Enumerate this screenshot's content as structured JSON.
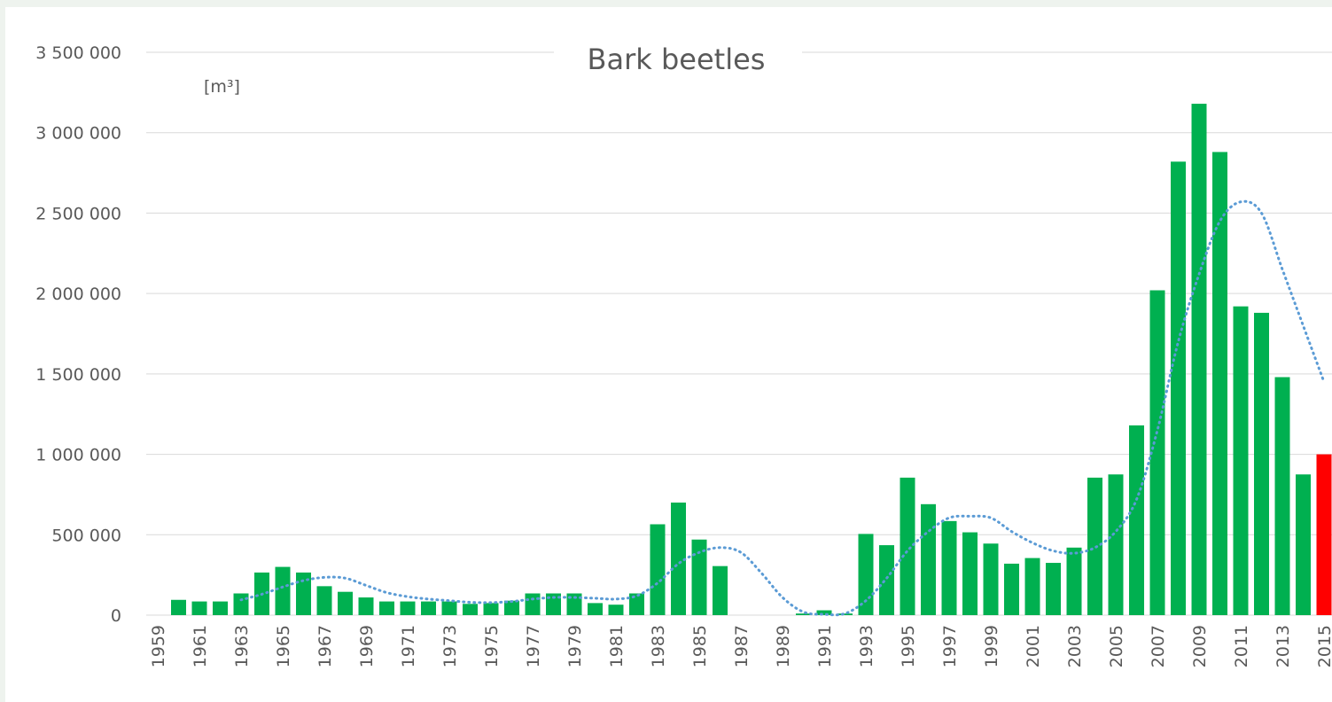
{
  "chart_data": {
    "type": "bar",
    "title": "Bark beetles",
    "unit": "[m³]",
    "categories": [
      "1959",
      null,
      "1961",
      null,
      "1963",
      null,
      "1965",
      null,
      "1967",
      null,
      "1969",
      null,
      "1971",
      null,
      "1973",
      null,
      "1975",
      null,
      "1977",
      null,
      "1979",
      null,
      "1981",
      null,
      "1983",
      null,
      "1985",
      null,
      "1987",
      null,
      "1989",
      null,
      "1991",
      null,
      "1993",
      null,
      "1995",
      null,
      "1997",
      null,
      "1999",
      null,
      "2001",
      null,
      "2003",
      null,
      "2005",
      null,
      "2007",
      null,
      "2009",
      null,
      "2011",
      null,
      "2013",
      null,
      "2015"
    ],
    "values": [
      null,
      95000,
      85000,
      85000,
      135000,
      265000,
      300000,
      265000,
      180000,
      145000,
      110000,
      85000,
      85000,
      85000,
      85000,
      70000,
      75000,
      90000,
      135000,
      135000,
      135000,
      75000,
      65000,
      135000,
      565000,
      700000,
      470000,
      305000,
      null,
      null,
      null,
      10000,
      30000,
      10000,
      505000,
      435000,
      855000,
      690000,
      585000,
      515000,
      445000,
      320000,
      355000,
      325000,
      420000,
      855000,
      875000,
      1180000,
      2020000,
      2820000,
      3180000,
      2880000,
      1920000,
      1880000,
      1480000,
      875000,
      1000000
    ],
    "color": "#00b050",
    "bar_colors": [
      "#00b050",
      "#00b050",
      "#00b050",
      "#00b050",
      "#00b050",
      "#00b050",
      "#00b050",
      "#00b050",
      "#00b050",
      "#00b050",
      "#00b050",
      "#00b050",
      "#00b050",
      "#00b050",
      "#00b050",
      "#00b050",
      "#00b050",
      "#00b050",
      "#00b050",
      "#00b050",
      "#00b050",
      "#00b050",
      "#00b050",
      "#00b050",
      "#00b050",
      "#00b050",
      "#00b050",
      "#00b050",
      "#00b050",
      "#00b050",
      "#00b050",
      "#00b050",
      "#00b050",
      "#00b050",
      "#00b050",
      "#00b050",
      "#00b050",
      "#00b050",
      "#00b050",
      "#00b050",
      "#00b050",
      "#00b050",
      "#00b050",
      "#00b050",
      "#00b050",
      "#00b050",
      "#00b050",
      "#00b050",
      "#00b050",
      "#00b050",
      "#00b050",
      "#00b050",
      "#00b050",
      "#00b050",
      "#00b050",
      "#00b050",
      "#ff0000"
    ],
    "trend": {
      "color": "#5b9bd5",
      "values": [
        null,
        null,
        null,
        null,
        95000,
        130000,
        175000,
        215000,
        235000,
        230000,
        185000,
        140000,
        115000,
        100000,
        90000,
        80000,
        78000,
        85000,
        100000,
        110000,
        110000,
        105000,
        100000,
        120000,
        200000,
        320000,
        390000,
        420000,
        390000,
        260000,
        110000,
        20000,
        5000,
        10000,
        90000,
        230000,
        400000,
        520000,
        605000,
        615000,
        605000,
        520000,
        450000,
        400000,
        385000,
        420000,
        520000,
        720000,
        1150000,
        1700000,
        2120000,
        2450000,
        2570000,
        2500000,
        2150000,
        1800000,
        1450000
      ]
    },
    "ylim": [
      0,
      3500000
    ],
    "yticks": [
      0,
      {
        "value": 500000,
        "label": "500 000"
      },
      {
        "value": 1000000,
        "label": "1 000 000"
      },
      {
        "value": 1500000,
        "label": "1 500 000"
      },
      {
        "value": 2000000,
        "label": "2 000 000"
      },
      {
        "value": 2500000,
        "label": "2 500 000"
      },
      {
        "value": 3000000,
        "label": "3 000 000"
      },
      {
        "value": 3500000,
        "label": "3 500 000"
      }
    ],
    "grid": true
  }
}
